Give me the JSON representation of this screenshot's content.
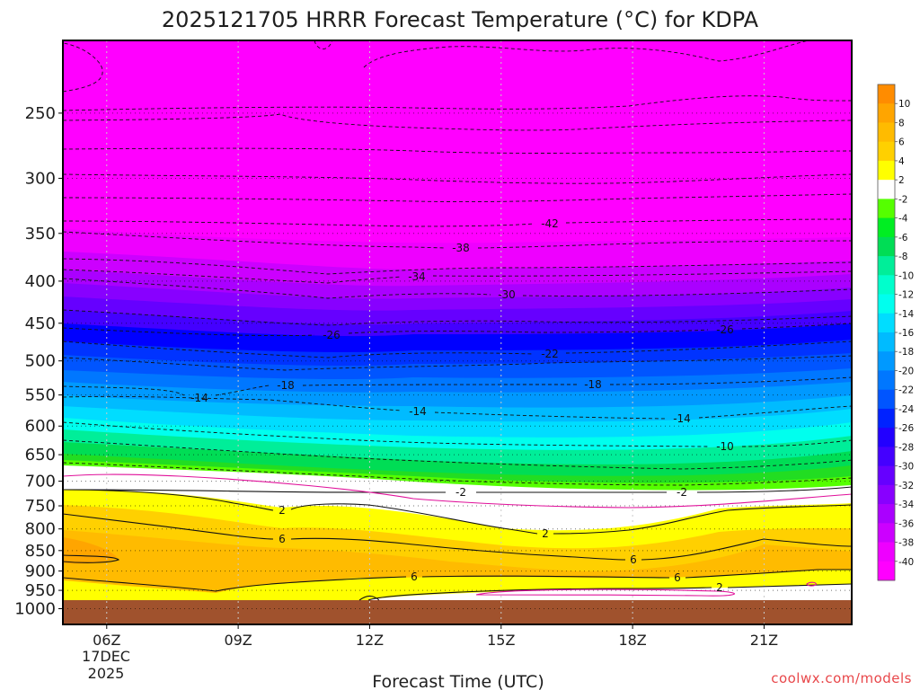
{
  "chart_data": {
    "type": "heatmap",
    "title": "2025121705 HRRR Forecast Temperature (°C) for KDPA",
    "xlabel": "Forecast Time (UTC)",
    "ylabel": "",
    "x_units": "hour UTC",
    "y_units": "hPa",
    "xlim": [
      5,
      23
    ],
    "ylim": [
      1045,
      204
    ],
    "y_scale": "log",
    "x_ticks": [
      6,
      9,
      12,
      15,
      18,
      21
    ],
    "x_tick_labels": [
      "06Z",
      "09Z",
      "12Z",
      "15Z",
      "18Z",
      "21Z"
    ],
    "date_label": [
      "17DEC",
      "2025"
    ],
    "y_ticks": [
      250,
      300,
      350,
      400,
      450,
      500,
      550,
      600,
      650,
      700,
      750,
      800,
      850,
      900,
      950,
      1000
    ],
    "y_tick_labels": [
      "250",
      "300",
      "350",
      "400",
      "450",
      "500",
      "550",
      "600",
      "650",
      "700",
      "750",
      "800",
      "850",
      "900",
      "950",
      "1000"
    ],
    "colorbar": {
      "labels": [
        "10",
        "8",
        "6",
        "4",
        "2",
        "-2",
        "-4",
        "-6",
        "-8",
        "-10",
        "-12",
        "-14",
        "-16",
        "-18",
        "-20",
        "-22",
        "-24",
        "-26",
        "-28",
        "-30",
        "-32",
        "-34",
        "-36",
        "-38",
        "-40"
      ],
      "colors": [
        "#ff8c00",
        "#ffa500",
        "#ffbb00",
        "#ffd000",
        "#ffff00",
        "#ffffff",
        "#55ff00",
        "#00ee22",
        "#00dd55",
        "#00ee99",
        "#00ffcc",
        "#00ffee",
        "#00ddff",
        "#00bbff",
        "#0099ff",
        "#0077ff",
        "#0055ff",
        "#0022ff",
        "#2200ff",
        "#4400ff",
        "#6600ff",
        "#8800ff",
        "#aa00ff",
        "#cc00ff",
        "#ee00ff",
        "#ff00ff"
      ]
    },
    "contour_labels": [
      "-42",
      "-38",
      "-34",
      "-30",
      "-26",
      "-26",
      "-22",
      "-18",
      "-18",
      "-14",
      "-14",
      "-14",
      "-10",
      "-2",
      "-2",
      "2",
      "2",
      "6",
      "6",
      "6",
      "6",
      "2"
    ],
    "levels_labeled": [
      -42,
      -38,
      -34,
      -30,
      -26,
      -22,
      -18,
      -14,
      -10,
      -2,
      2,
      6
    ],
    "credit": "coolwx.com/models"
  }
}
